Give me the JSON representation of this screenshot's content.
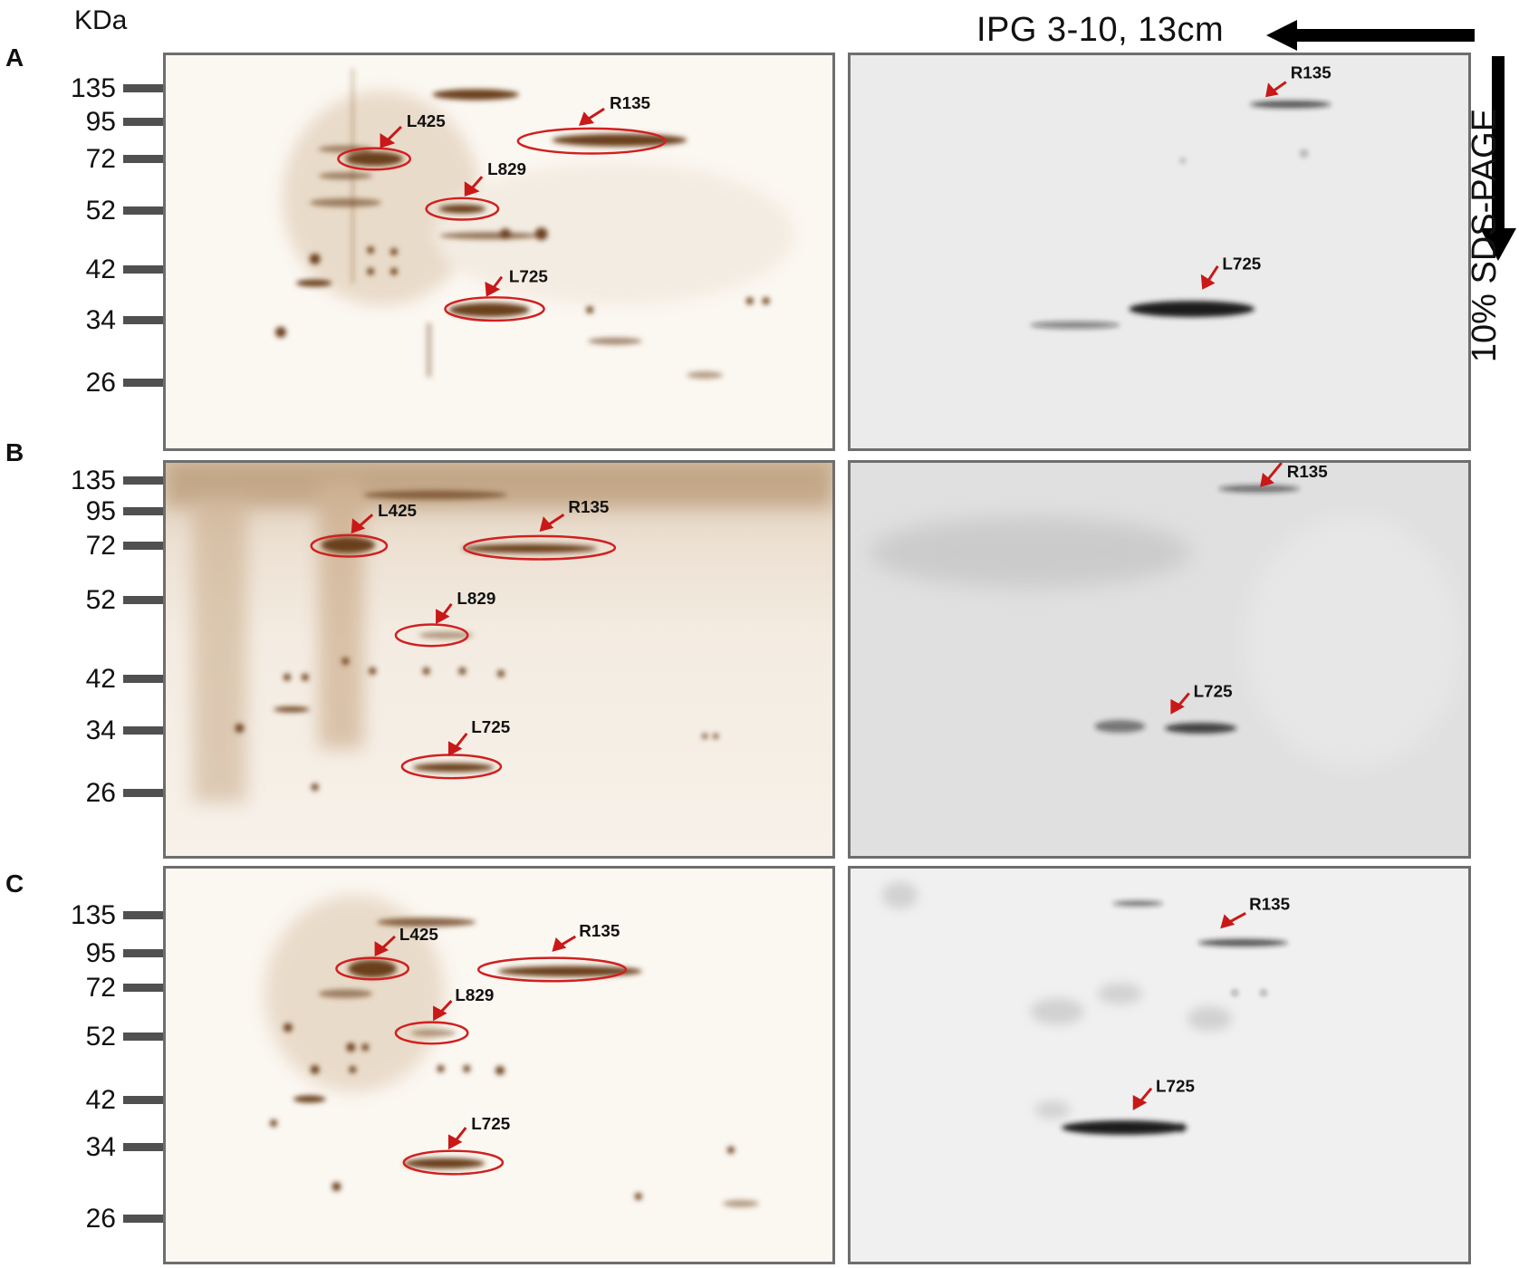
{
  "header": {
    "mw_unit": "KDa",
    "ipg_label": "IPG 3-10, 13cm",
    "sds_label": "10% SDS-PAGE"
  },
  "rows": [
    {
      "label": "A",
      "markers": [
        "135",
        "95",
        "72",
        "52",
        "42",
        "34",
        "26"
      ]
    },
    {
      "label": "B",
      "markers": [
        "135",
        "95",
        "72",
        "52",
        "42",
        "34",
        "26"
      ]
    },
    {
      "label": "C",
      "markers": [
        "135",
        "95",
        "72",
        "52",
        "42",
        "34",
        "26"
      ]
    }
  ],
  "spots": {
    "l425": "L425",
    "r135": "R135",
    "l829": "L829",
    "l725": "L725"
  },
  "colors": {
    "stain_brown": "#7a4a22",
    "circle_red": "#d02020",
    "arrow_red": "#c81818",
    "blot_band": "#202020"
  },
  "icons": {
    "horizontal_arrow": "arrow-left-icon",
    "vertical_arrow": "arrow-down-icon"
  }
}
